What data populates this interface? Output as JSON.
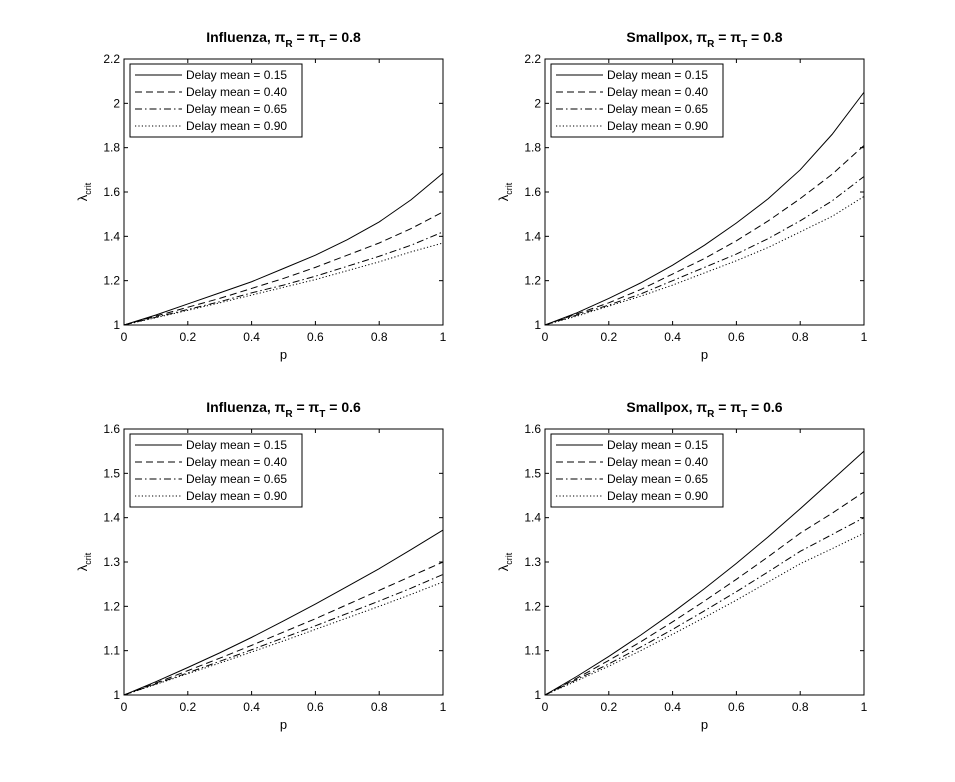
{
  "chart_data": [
    {
      "type": "line",
      "title": {
        "prefix": "Influenza, ",
        "pi": "π",
        "sub1": "R",
        "mid": " = ",
        "sub2": "T",
        "suffix": " = 0.8"
      },
      "xlabel": "p",
      "ylabel": {
        "main": "λ",
        "sub": "crit"
      },
      "xlim": [
        0,
        1
      ],
      "ylim": [
        1,
        2.2
      ],
      "xticks": [
        "0",
        "0.2",
        "0.4",
        "0.6",
        "0.8",
        "1"
      ],
      "yticks": [
        "1",
        "1.2",
        "1.4",
        "1.6",
        "1.8",
        "2",
        "2.2"
      ],
      "legend_position": "top-left",
      "x": [
        0,
        0.1,
        0.2,
        0.3,
        0.4,
        0.5,
        0.6,
        0.7,
        0.8,
        0.9,
        1.0
      ],
      "series": [
        {
          "name": "Delay mean = 0.15",
          "style": "solid",
          "values": [
            1.0,
            1.045,
            1.095,
            1.145,
            1.195,
            1.255,
            1.315,
            1.385,
            1.465,
            1.565,
            1.685
          ]
        },
        {
          "name": "Delay mean = 0.40",
          "style": "dashed",
          "values": [
            1.0,
            1.04,
            1.08,
            1.12,
            1.165,
            1.21,
            1.26,
            1.315,
            1.37,
            1.435,
            1.51
          ]
        },
        {
          "name": "Delay mean = 0.65",
          "style": "dashdot",
          "values": [
            1.0,
            1.035,
            1.07,
            1.105,
            1.145,
            1.18,
            1.22,
            1.265,
            1.31,
            1.36,
            1.42
          ]
        },
        {
          "name": "Delay mean = 0.90",
          "style": "dotted",
          "values": [
            1.0,
            1.033,
            1.066,
            1.1,
            1.135,
            1.17,
            1.205,
            1.245,
            1.285,
            1.33,
            1.37
          ]
        }
      ]
    },
    {
      "type": "line",
      "title": {
        "prefix": "Smallpox, ",
        "pi": "π",
        "sub1": "R",
        "mid": " = ",
        "sub2": "T",
        "suffix": " = 0.8"
      },
      "xlabel": "p",
      "ylabel": {
        "main": "λ",
        "sub": "crit"
      },
      "xlim": [
        0,
        1
      ],
      "ylim": [
        1,
        2.2
      ],
      "xticks": [
        "0",
        "0.2",
        "0.4",
        "0.6",
        "0.8",
        "1"
      ],
      "yticks": [
        "1",
        "1.2",
        "1.4",
        "1.6",
        "1.8",
        "2",
        "2.2"
      ],
      "legend_position": "top-left",
      "x": [
        0,
        0.1,
        0.2,
        0.3,
        0.4,
        0.5,
        0.6,
        0.7,
        0.8,
        0.9,
        1.0
      ],
      "series": [
        {
          "name": "Delay mean = 0.15",
          "style": "solid",
          "values": [
            1.0,
            1.055,
            1.12,
            1.19,
            1.27,
            1.36,
            1.46,
            1.57,
            1.7,
            1.86,
            2.05
          ]
        },
        {
          "name": "Delay mean = 0.40",
          "style": "dashed",
          "values": [
            1.0,
            1.05,
            1.1,
            1.16,
            1.23,
            1.3,
            1.38,
            1.47,
            1.57,
            1.68,
            1.81
          ]
        },
        {
          "name": "Delay mean = 0.65",
          "style": "dashdot",
          "values": [
            1.0,
            1.045,
            1.09,
            1.14,
            1.2,
            1.26,
            1.32,
            1.39,
            1.47,
            1.56,
            1.67
          ]
        },
        {
          "name": "Delay mean = 0.90",
          "style": "dotted",
          "values": [
            1.0,
            1.04,
            1.085,
            1.13,
            1.18,
            1.235,
            1.29,
            1.35,
            1.42,
            1.49,
            1.58
          ]
        }
      ]
    },
    {
      "type": "line",
      "title": {
        "prefix": "Influenza, ",
        "pi": "π",
        "sub1": "R",
        "mid": " = ",
        "sub2": "T",
        "suffix": " = 0.6"
      },
      "xlabel": "p",
      "ylabel": {
        "main": "λ",
        "sub": "crit"
      },
      "xlim": [
        0,
        1
      ],
      "ylim": [
        1,
        1.6
      ],
      "xticks": [
        "0",
        "0.2",
        "0.4",
        "0.6",
        "0.8",
        "1"
      ],
      "yticks": [
        "1",
        "1.1",
        "1.2",
        "1.3",
        "1.4",
        "1.5",
        "1.6"
      ],
      "legend_position": "top-left",
      "x": [
        0,
        0.1,
        0.2,
        0.3,
        0.4,
        0.5,
        0.6,
        0.7,
        0.8,
        0.9,
        1.0
      ],
      "series": [
        {
          "name": "Delay mean = 0.15",
          "style": "solid",
          "values": [
            1.0,
            1.03,
            1.062,
            1.095,
            1.13,
            1.167,
            1.205,
            1.245,
            1.285,
            1.328,
            1.372
          ]
        },
        {
          "name": "Delay mean = 0.40",
          "style": "dashed",
          "values": [
            1.0,
            1.027,
            1.055,
            1.083,
            1.112,
            1.142,
            1.172,
            1.204,
            1.236,
            1.268,
            1.3
          ]
        },
        {
          "name": "Delay mean = 0.65",
          "style": "dashdot",
          "values": [
            1.0,
            1.025,
            1.05,
            1.076,
            1.102,
            1.129,
            1.156,
            1.184,
            1.212,
            1.241,
            1.272
          ]
        },
        {
          "name": "Delay mean = 0.90",
          "style": "dotted",
          "values": [
            1.0,
            1.024,
            1.048,
            1.072,
            1.097,
            1.122,
            1.148,
            1.174,
            1.2,
            1.227,
            1.255
          ]
        }
      ]
    },
    {
      "type": "line",
      "title": {
        "prefix": "Smallpox, ",
        "pi": "π",
        "sub1": "R",
        "mid": " = ",
        "sub2": "T",
        "suffix": " = 0.6"
      },
      "xlabel": "p",
      "ylabel": {
        "main": "λ",
        "sub": "crit"
      },
      "xlim": [
        0,
        1
      ],
      "ylim": [
        1,
        1.6
      ],
      "xticks": [
        "0",
        "0.2",
        "0.4",
        "0.6",
        "0.8",
        "1"
      ],
      "yticks": [
        "1",
        "1.1",
        "1.2",
        "1.3",
        "1.4",
        "1.5",
        "1.6"
      ],
      "legend_position": "top-left",
      "x": [
        0,
        0.1,
        0.2,
        0.3,
        0.4,
        0.5,
        0.6,
        0.7,
        0.8,
        0.9,
        1.0
      ],
      "series": [
        {
          "name": "Delay mean = 0.15",
          "style": "solid",
          "values": [
            1.0,
            1.042,
            1.087,
            1.135,
            1.186,
            1.24,
            1.297,
            1.357,
            1.42,
            1.485,
            1.55
          ]
        },
        {
          "name": "Delay mean = 0.40",
          "style": "dashed",
          "values": [
            1.0,
            1.038,
            1.078,
            1.12,
            1.165,
            1.212,
            1.261,
            1.312,
            1.365,
            1.41,
            1.458
          ]
        },
        {
          "name": "Delay mean = 0.65",
          "style": "dashdot",
          "values": [
            1.0,
            1.035,
            1.07,
            1.108,
            1.148,
            1.19,
            1.233,
            1.278,
            1.324,
            1.362,
            1.4
          ]
        },
        {
          "name": "Delay mean = 0.90",
          "style": "dotted",
          "values": [
            1.0,
            1.032,
            1.065,
            1.1,
            1.137,
            1.175,
            1.214,
            1.255,
            1.296,
            1.33,
            1.365
          ]
        }
      ]
    }
  ]
}
